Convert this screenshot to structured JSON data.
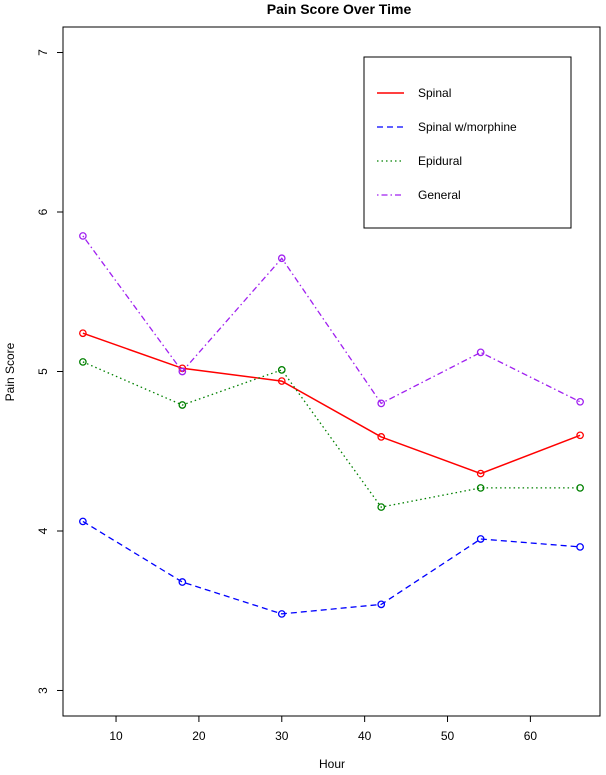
{
  "chart_data": {
    "type": "line",
    "title": "Pain Score Over Time",
    "xlabel": "Hour",
    "ylabel": "Pain Score",
    "xlim": [
      3.6,
      68.4
    ],
    "ylim": [
      2.84,
      7.16
    ],
    "xticks": [
      10,
      20,
      30,
      40,
      50,
      60
    ],
    "yticks": [
      3,
      4,
      5,
      6,
      7
    ],
    "x": [
      6,
      18,
      30,
      42,
      54,
      66
    ],
    "legend_position": "top-right",
    "series": [
      {
        "name": "Spinal",
        "color": "#ff0000",
        "dash": "solid",
        "values": [
          5.24,
          5.02,
          4.94,
          4.59,
          4.36,
          4.6
        ]
      },
      {
        "name": "Spinal w/morphine",
        "color": "#0000ff",
        "dash": "dashed",
        "values": [
          4.06,
          3.68,
          3.48,
          3.54,
          3.95,
          3.9
        ]
      },
      {
        "name": "Epidural",
        "color": "#008000",
        "dash": "dotted",
        "values": [
          5.06,
          4.79,
          5.01,
          4.15,
          4.27,
          4.27
        ]
      },
      {
        "name": "General",
        "color": "#a020f0",
        "dash": "dotdash",
        "values": [
          5.85,
          5.0,
          5.71,
          4.8,
          5.12,
          4.81
        ]
      }
    ]
  }
}
